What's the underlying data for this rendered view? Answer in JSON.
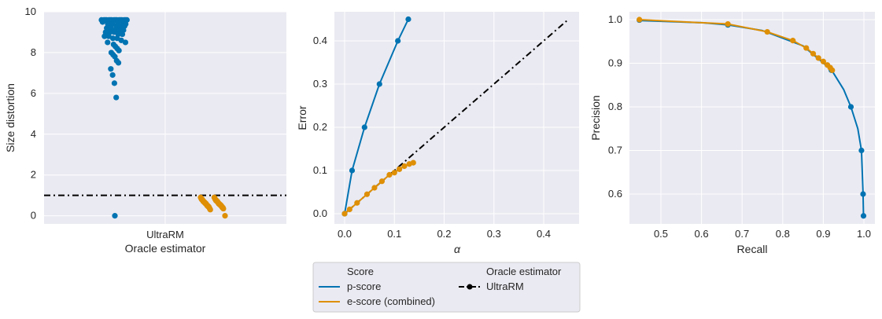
{
  "colors": {
    "panel_bg": "#eaeaf2",
    "grid": "#ffffff",
    "p_score": "#0173b2",
    "e_score": "#de8f05",
    "oracle": "#000000"
  },
  "chart_data": [
    {
      "type": "scatter",
      "panel": "left",
      "title": "",
      "xlabel_line1": "UltraRM",
      "xlabel_line2": "Oracle estimator",
      "ylabel": "Size distortion",
      "ylim": [
        -0.4,
        10
      ],
      "yticks": [
        0,
        2,
        4,
        6,
        8,
        10
      ],
      "xticklabels": [
        "UltraRM"
      ],
      "reference_line": {
        "y": 1.0,
        "style": "dash-dot",
        "color": "#000000"
      },
      "grid": true,
      "series": [
        {
          "name": "p-score",
          "values": [
            9.6,
            9.6,
            9.6,
            9.6,
            9.6,
            9.6,
            9.6,
            9.6,
            9.6,
            9.6,
            9.6,
            9.6,
            9.6,
            9.6,
            9.6,
            9.6,
            9.5,
            9.5,
            9.5,
            9.5,
            9.5,
            9.4,
            9.4,
            9.4,
            9.3,
            9.3,
            9.3,
            9.2,
            9.2,
            9.1,
            9.1,
            9.1,
            9.0,
            9.0,
            9.0,
            8.9,
            8.9,
            8.8,
            8.8,
            8.7,
            8.7,
            8.6,
            8.5,
            8.5,
            8.4,
            8.3,
            8.2,
            8.1,
            8.0,
            7.9,
            7.8,
            7.6,
            7.5,
            7.2,
            6.9,
            6.5,
            5.8,
            0.0
          ]
        },
        {
          "name": "e-score (combined)",
          "values": [
            0.9,
            0.9,
            0.85,
            0.85,
            0.8,
            0.8,
            0.8,
            0.75,
            0.75,
            0.75,
            0.7,
            0.7,
            0.7,
            0.7,
            0.65,
            0.65,
            0.65,
            0.6,
            0.6,
            0.6,
            0.6,
            0.55,
            0.55,
            0.55,
            0.5,
            0.5,
            0.5,
            0.5,
            0.45,
            0.45,
            0.45,
            0.4,
            0.4,
            0.4,
            0.35,
            0.35,
            0.3,
            0.0
          ]
        }
      ]
    },
    {
      "type": "line",
      "panel": "middle",
      "title": "",
      "xlabel": "α",
      "ylabel": "Error",
      "xlim": [
        -0.02,
        0.46
      ],
      "ylim": [
        -0.02,
        0.47
      ],
      "xticks": [
        0.0,
        0.1,
        0.2,
        0.3,
        0.4
      ],
      "yticks": [
        0.0,
        0.1,
        0.2,
        0.3,
        0.4
      ],
      "grid": true,
      "series": [
        {
          "name": "p-score",
          "x": [
            0.0,
            0.015,
            0.04,
            0.07,
            0.107,
            0.128
          ],
          "y": [
            0.0,
            0.1,
            0.2,
            0.3,
            0.4,
            0.45
          ]
        },
        {
          "name": "e-score (combined)",
          "x": [
            0.0,
            0.01,
            0.025,
            0.045,
            0.06,
            0.075,
            0.09,
            0.1,
            0.11,
            0.12,
            0.13,
            0.138
          ],
          "y": [
            0.0,
            0.01,
            0.025,
            0.045,
            0.06,
            0.075,
            0.09,
            0.095,
            0.103,
            0.11,
            0.115,
            0.118
          ]
        },
        {
          "name": "UltraRM",
          "x": [
            0.0,
            0.45
          ],
          "y": [
            0.0,
            0.45
          ],
          "style": "dash-dot"
        }
      ]
    },
    {
      "type": "line",
      "panel": "right",
      "title": "",
      "xlabel": "Recall",
      "ylabel": "Precision",
      "xlim": [
        0.42,
        1.02
      ],
      "ylim": [
        0.535,
        1.015
      ],
      "xticks": [
        0.5,
        0.6,
        0.7,
        0.8,
        0.9,
        1.0
      ],
      "yticks": [
        0.6,
        0.7,
        0.8,
        0.9,
        1.0
      ],
      "grid": true,
      "series": [
        {
          "name": "p-score",
          "x": [
            0.447,
            0.6,
            0.665,
            0.75,
            0.85,
            0.92,
            0.95,
            0.968,
            0.985,
            0.994,
            0.998,
            0.999
          ],
          "y": [
            0.998,
            0.993,
            0.988,
            0.975,
            0.94,
            0.885,
            0.84,
            0.8,
            0.75,
            0.7,
            0.6,
            0.55
          ],
          "markers": [
            [
              0.447,
              0.999
            ],
            [
              0.665,
              0.988
            ],
            [
              0.92,
              0.884
            ],
            [
              0.968,
              0.8
            ],
            [
              0.994,
              0.7
            ],
            [
              0.998,
              0.6
            ],
            [
              0.999,
              0.55
            ]
          ]
        },
        {
          "name": "e-score (combined)",
          "x": [
            0.447,
            0.665,
            0.762,
            0.825,
            0.858,
            0.875,
            0.888,
            0.9,
            0.91,
            0.917,
            0.922
          ],
          "y": [
            1.0,
            0.99,
            0.972,
            0.952,
            0.935,
            0.922,
            0.912,
            0.904,
            0.896,
            0.89,
            0.884
          ]
        }
      ]
    }
  ],
  "legend": {
    "score_title": "Score",
    "oracle_title": "Oracle estimator",
    "items": [
      {
        "label": "p-score"
      },
      {
        "label": "e-score (combined)"
      },
      {
        "label": "UltraRM"
      }
    ]
  }
}
